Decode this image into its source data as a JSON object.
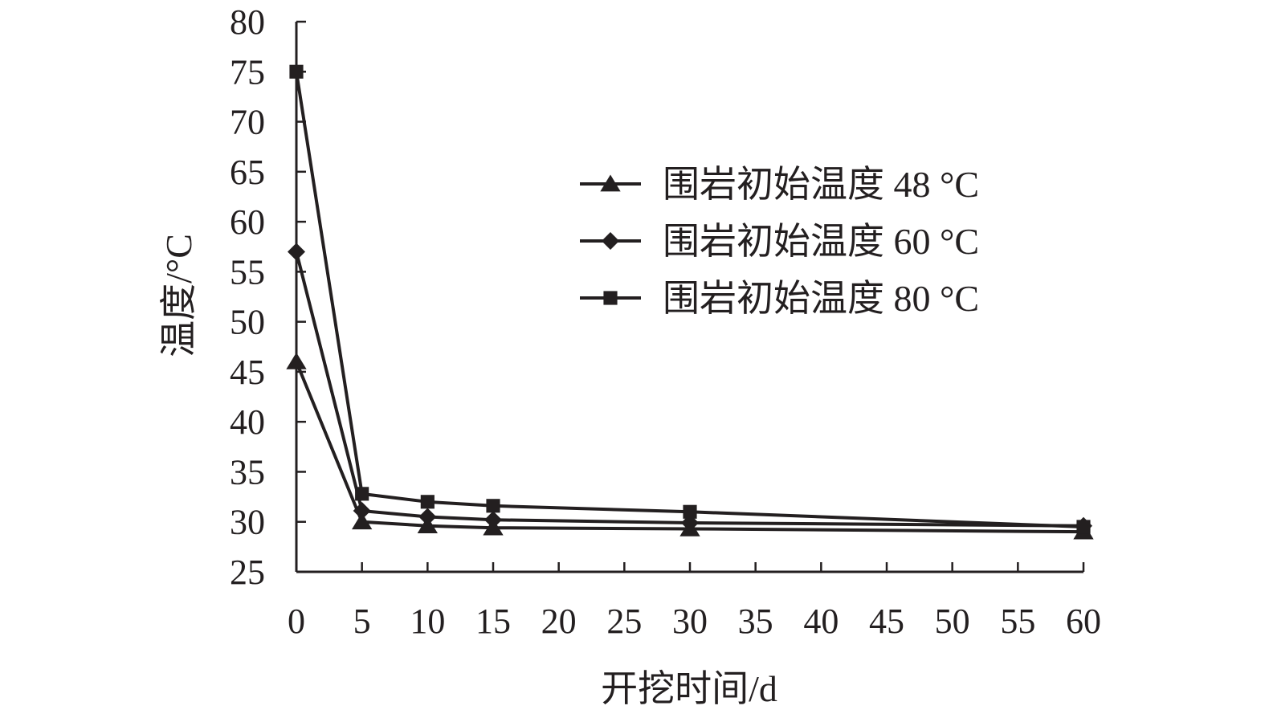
{
  "chart_data": {
    "type": "line",
    "xlabel": "开挖时间/d",
    "ylabel": "温度/°C",
    "xlim": [
      0,
      60
    ],
    "ylim": [
      25,
      80
    ],
    "x_ticks": [
      0,
      5,
      10,
      15,
      20,
      25,
      30,
      35,
      40,
      45,
      50,
      55,
      60
    ],
    "y_ticks": [
      25,
      30,
      35,
      40,
      45,
      50,
      55,
      60,
      65,
      70,
      75,
      80
    ],
    "grid": false,
    "legend_position": "upper-right",
    "line_color": "#231f20",
    "series": [
      {
        "name": "围岩初始温度 48 °C",
        "marker": "triangle",
        "x": [
          0,
          5,
          10,
          15,
          30,
          60
        ],
        "y": [
          46,
          30,
          29.6,
          29.4,
          29.3,
          29.0
        ]
      },
      {
        "name": "围岩初始温度 60 °C",
        "marker": "diamond",
        "x": [
          0,
          5,
          10,
          15,
          30,
          60
        ],
        "y": [
          57,
          31.1,
          30.5,
          30.2,
          29.9,
          29.6
        ]
      },
      {
        "name": "围岩初始温度 80 °C",
        "marker": "square",
        "x": [
          0,
          5,
          10,
          15,
          30,
          60
        ],
        "y": [
          75,
          32.8,
          32.0,
          31.6,
          31.0,
          29.5
        ]
      }
    ]
  }
}
